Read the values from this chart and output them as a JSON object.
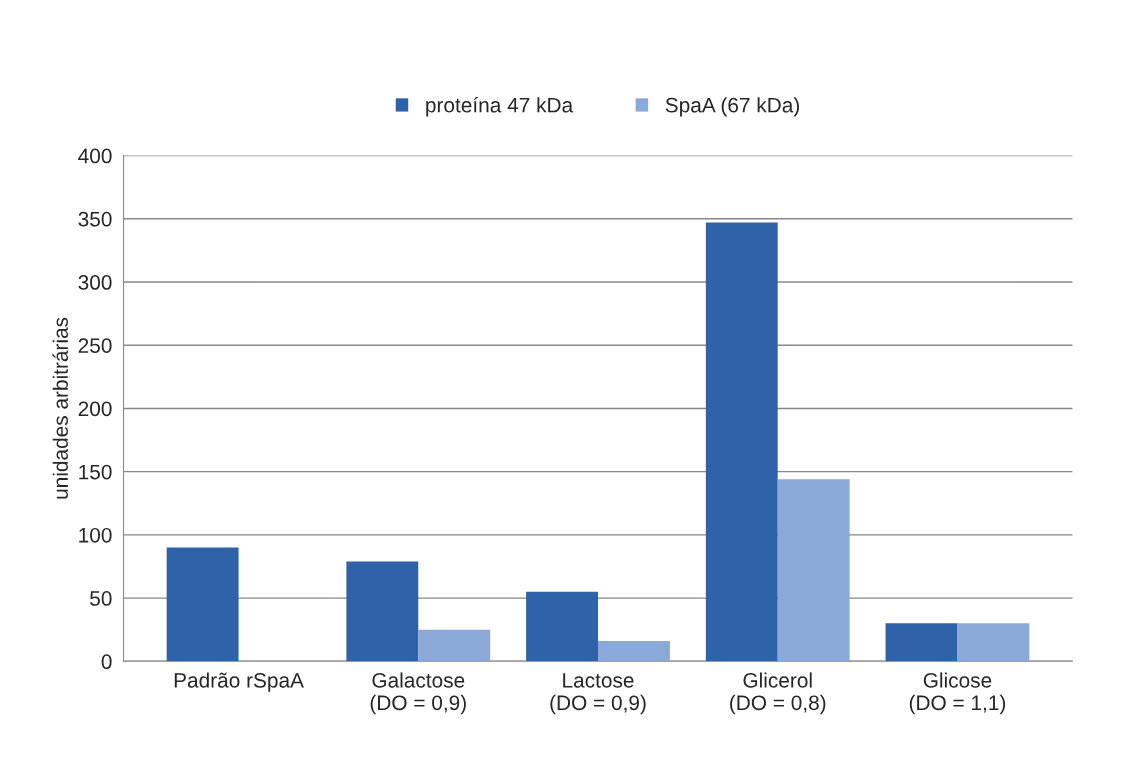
{
  "chart_data": {
    "type": "bar",
    "ylabel": "unidades arbitrárias",
    "categories": [
      "Padrão rSpaA",
      "Galactose\n(DO = 0,9)",
      "Lactose\n(DO = 0,9)",
      "Glicerol\n(DO = 0,8)",
      "Glicose\n(DO = 1,1)"
    ],
    "series": [
      {
        "name": "proteína 47 kDa",
        "color": "#2f62a8",
        "values": [
          90,
          79,
          55,
          347,
          30
        ]
      },
      {
        "name": "SpaA (67 kDa)",
        "color": "#8aa8d8",
        "values": [
          null,
          25,
          16,
          144,
          30
        ]
      }
    ],
    "ylim": [
      0,
      400
    ],
    "yticks": [
      0,
      50,
      100,
      150,
      200,
      250,
      300,
      350,
      400
    ],
    "grid": "y",
    "legend": "top"
  }
}
